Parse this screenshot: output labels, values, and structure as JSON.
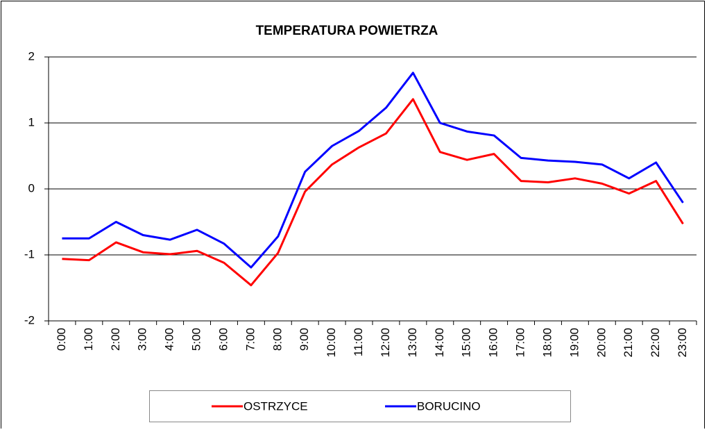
{
  "chart_data": {
    "type": "line",
    "title": "TEMPERATURA  POWIETRZA",
    "categories": [
      "0:00",
      "1:00",
      "2:00",
      "3:00",
      "4:00",
      "5:00",
      "6:00",
      "7:00",
      "8:00",
      "9:00",
      "10:00",
      "11:00",
      "12:00",
      "13:00",
      "14:00",
      "15:00",
      "16:00",
      "17:00",
      "18:00",
      "19:00",
      "20:00",
      "21:00",
      "22:00",
      "23:00"
    ],
    "series": [
      {
        "name": "OSTRZYCE",
        "color": "#ff0000",
        "values": [
          -1.06,
          -1.08,
          -0.81,
          -0.96,
          -0.99,
          -0.94,
          -1.12,
          -1.46,
          -0.97,
          -0.04,
          0.37,
          0.63,
          0.84,
          1.36,
          0.56,
          0.44,
          0.53,
          0.12,
          0.1,
          0.16,
          0.08,
          -0.07,
          0.12,
          -0.53
        ]
      },
      {
        "name": "BORUCINO",
        "color": "#0000ff",
        "values": [
          -0.75,
          -0.75,
          -0.5,
          -0.7,
          -0.77,
          -0.62,
          -0.83,
          -1.19,
          -0.72,
          0.26,
          0.65,
          0.88,
          1.23,
          1.76,
          1.0,
          0.87,
          0.81,
          0.47,
          0.43,
          0.41,
          0.37,
          0.16,
          0.4,
          -0.21
        ]
      }
    ],
    "ylim": [
      -2,
      2
    ],
    "yticks": [
      -2,
      -1,
      0,
      1,
      2
    ],
    "grid": true,
    "legend": "bottom"
  }
}
